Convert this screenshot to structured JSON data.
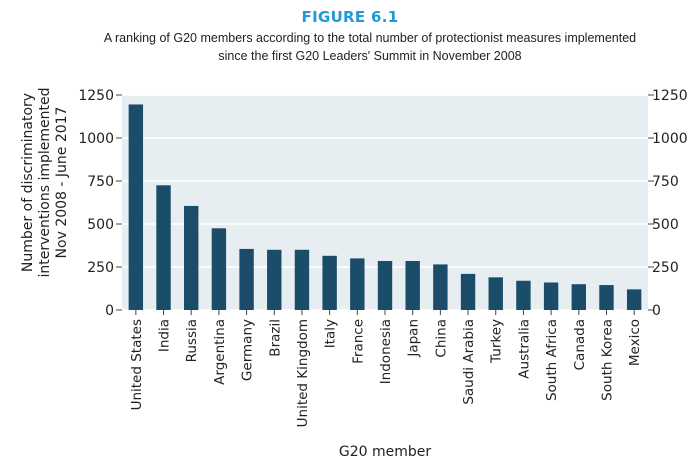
{
  "figure_label": "FIGURE 6.1",
  "subtitle_line1": "A ranking of G20 members according to the total number of protectionist measures implemented",
  "subtitle_line2": "since the first G20 Leaders' Summit in November 2008",
  "colors": {
    "bar": "#1b4c69",
    "plot_bg": "#e7eef1",
    "grid": "#ffffff",
    "title": "#1f9ad6"
  },
  "chart_data": {
    "type": "bar",
    "title": "A ranking of G20 members according to the total number of protectionist measures implemented since the first G20 Leaders' Summit in November 2008",
    "xlabel": "G20 member",
    "ylabel_lines": [
      "Number of discriminatory",
      "interventions implemented",
      "Nov 2008 - June 2017"
    ],
    "ylim": [
      0,
      1250
    ],
    "yticks": [
      0,
      250,
      500,
      750,
      1000,
      1250
    ],
    "ytick_labels": [
      "0",
      "250",
      "500",
      "750",
      "1000",
      "1250"
    ],
    "right_axis_mirrored": true,
    "grid": true,
    "categories": [
      "United States",
      "India",
      "Russia",
      "Argentina",
      "Germany",
      "Brazil",
      "United Kingdom",
      "Italy",
      "France",
      "Indonesia",
      "Japan",
      "China",
      "Saudi Arabia",
      "Turkey",
      "Australia",
      "South Africa",
      "Canada",
      "South Korea",
      "Mexico"
    ],
    "values": [
      1195,
      725,
      605,
      475,
      355,
      350,
      350,
      315,
      300,
      285,
      285,
      265,
      210,
      190,
      170,
      160,
      150,
      145,
      120
    ]
  }
}
